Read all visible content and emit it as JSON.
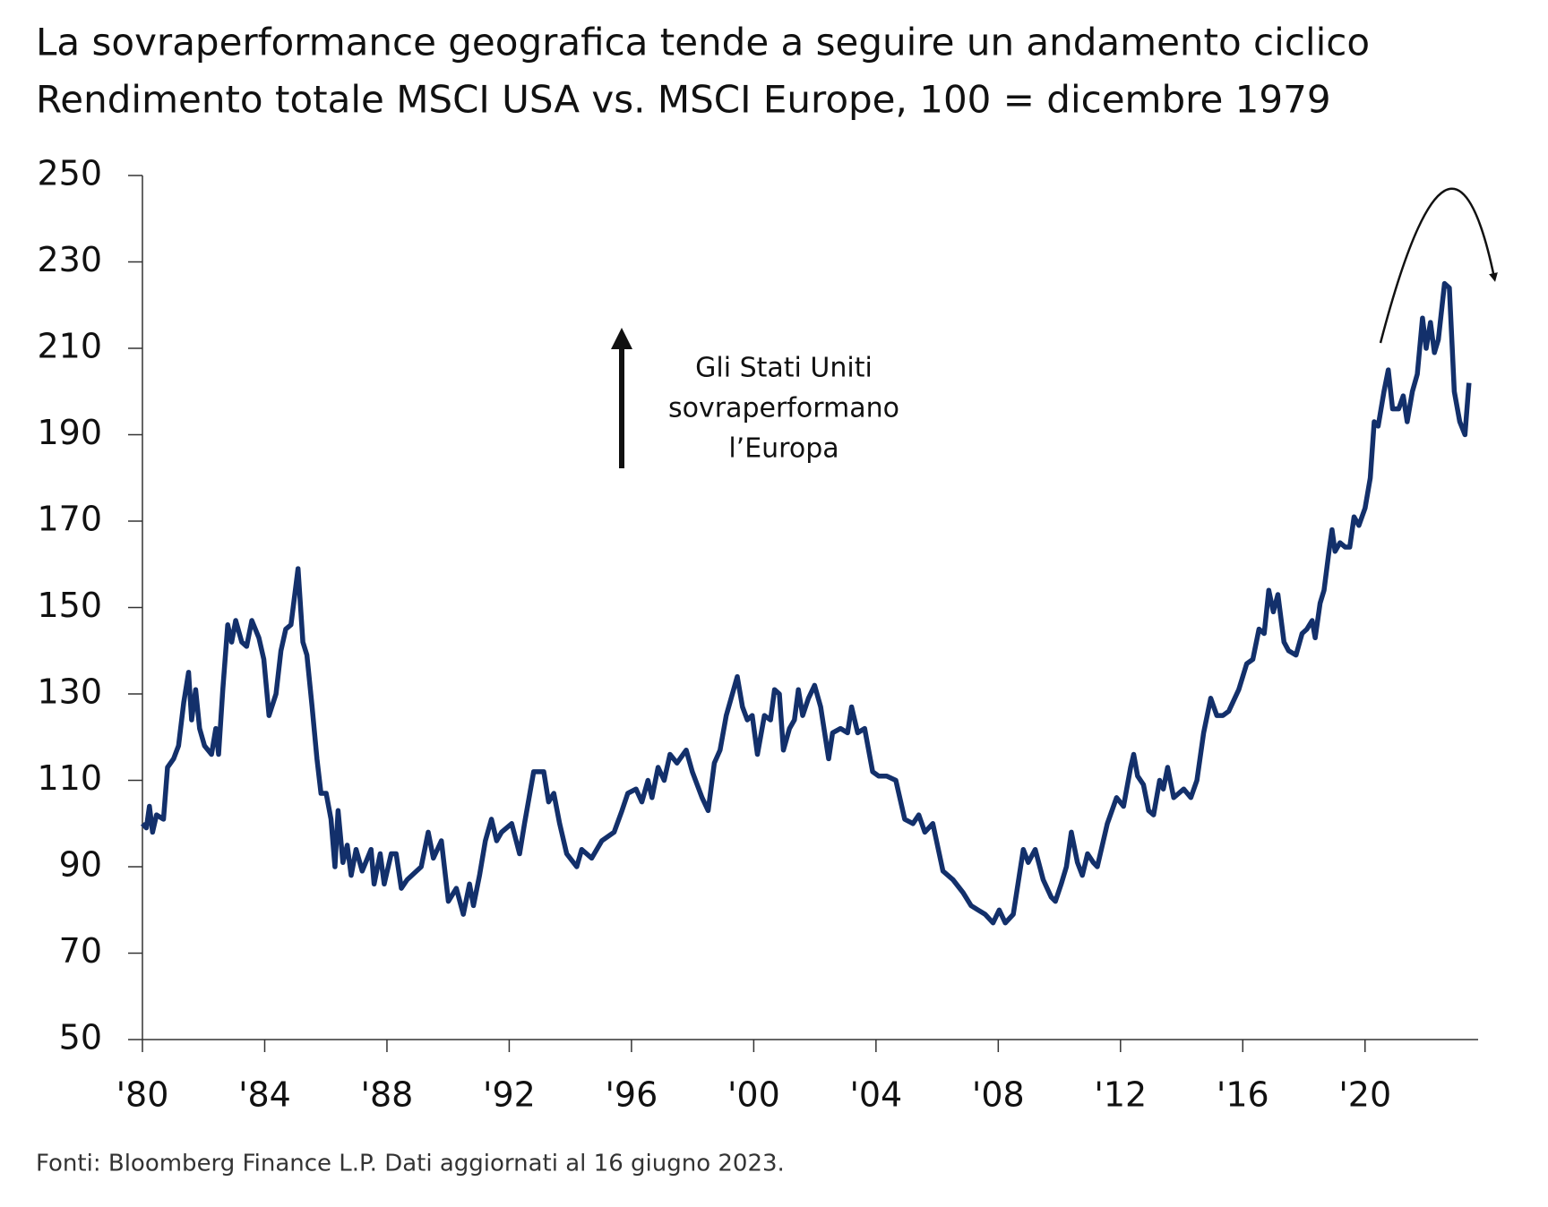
{
  "chart_data": {
    "type": "line",
    "title": "La sovraperformance geografica tende a seguire un andamento ciclico",
    "subtitle": "Rendimento totale MSCI USA vs. MSCI Europe, 100 = dicembre 1979",
    "annotation": [
      "Gli Stati Uniti",
      "sovraperformano",
      "l’Europa"
    ],
    "source": "Fonti: Bloomberg Finance L.P. Dati aggiornati al 16 giugno 2023.",
    "xlim": [
      1980,
      2023.7
    ],
    "ylim": [
      50,
      250
    ],
    "yticks": [
      50,
      70,
      90,
      110,
      130,
      150,
      170,
      190,
      210,
      230,
      250
    ],
    "xticks": [
      {
        "value": 1980,
        "label": "'80"
      },
      {
        "value": 1984,
        "label": "'84"
      },
      {
        "value": 1988,
        "label": "'88"
      },
      {
        "value": 1992,
        "label": "'92"
      },
      {
        "value": 1996,
        "label": "'96"
      },
      {
        "value": 2000,
        "label": "'00"
      },
      {
        "value": 2004,
        "label": "'04"
      },
      {
        "value": 2008,
        "label": "'08"
      },
      {
        "value": 2012,
        "label": "'12"
      },
      {
        "value": 2016,
        "label": "'16"
      },
      {
        "value": 2020,
        "label": "'20"
      }
    ],
    "grid": false,
    "x": [
      1980.0,
      1980.13,
      1980.23,
      1980.33,
      1980.46,
      1980.69,
      1980.82,
      1981.02,
      1981.18,
      1981.35,
      1981.51,
      1981.61,
      1981.74,
      1981.87,
      1982.03,
      1982.26,
      1982.4,
      1982.49,
      1982.63,
      1982.79,
      1982.92,
      1983.05,
      1983.25,
      1983.41,
      1983.58,
      1983.81,
      1983.97,
      1984.14,
      1984.37,
      1984.53,
      1984.69,
      1984.86,
      1985.09,
      1985.25,
      1985.38,
      1985.55,
      1985.71,
      1985.84,
      1986.01,
      1986.17,
      1986.3,
      1986.4,
      1986.56,
      1986.7,
      1986.83,
      1986.99,
      1987.19,
      1987.48,
      1987.58,
      1987.78,
      1987.91,
      1988.14,
      1988.3,
      1988.47,
      1988.66,
      1989.12,
      1989.35,
      1989.52,
      1989.78,
      1990.01,
      1990.27,
      1990.5,
      1990.7,
      1990.83,
      1991.03,
      1991.22,
      1991.42,
      1991.59,
      1991.75,
      1992.08,
      1992.34,
      1992.5,
      1992.8,
      1993.13,
      1993.29,
      1993.46,
      1993.65,
      1993.88,
      1994.21,
      1994.37,
      1994.7,
      1995.03,
      1995.43,
      1995.69,
      1995.88,
      1996.15,
      1996.34,
      1996.54,
      1996.67,
      1996.87,
      1997.07,
      1997.26,
      1997.49,
      1997.79,
      1997.99,
      1998.31,
      1998.51,
      1998.71,
      1998.9,
      1999.1,
      1999.46,
      1999.63,
      1999.79,
      1999.95,
      2000.12,
      2000.35,
      2000.55,
      2000.68,
      2000.84,
      2000.97,
      2001.17,
      2001.33,
      2001.46,
      2001.6,
      2001.79,
      2001.99,
      2002.19,
      2002.45,
      2002.58,
      2002.84,
      2003.07,
      2003.2,
      2003.4,
      2003.63,
      2003.89,
      2004.09,
      2004.35,
      2004.65,
      2004.94,
      2005.21,
      2005.4,
      2005.6,
      2005.86,
      2006.19,
      2006.52,
      2006.85,
      2007.11,
      2007.34,
      2007.57,
      2007.83,
      2008.03,
      2008.23,
      2008.49,
      2008.82,
      2008.98,
      2009.21,
      2009.47,
      2009.73,
      2009.87,
      2010.06,
      2010.23,
      2010.39,
      2010.59,
      2010.75,
      2010.92,
      2011.11,
      2011.24,
      2011.57,
      2011.87,
      2012.1,
      2012.33,
      2012.43,
      2012.56,
      2012.75,
      2012.92,
      2013.08,
      2013.28,
      2013.4,
      2013.54,
      2013.74,
      2014.07,
      2014.3,
      2014.5,
      2014.72,
      2014.95,
      2015.15,
      2015.35,
      2015.54,
      2015.87,
      2016.13,
      2016.33,
      2016.53,
      2016.7,
      2016.85,
      2017.0,
      2017.15,
      2017.35,
      2017.5,
      2017.74,
      2017.94,
      2018.1,
      2018.27,
      2018.37,
      2018.53,
      2018.66,
      2018.82,
      2018.92,
      2019.02,
      2019.18,
      2019.35,
      2019.5,
      2019.64,
      2019.8,
      2020.0,
      2020.17,
      2020.3,
      2020.43,
      2020.62,
      2020.76,
      2020.9,
      2021.1,
      2021.25,
      2021.38,
      2021.55,
      2021.71,
      2021.88,
      2022.0,
      2022.14,
      2022.27,
      2022.4,
      2022.6,
      2022.76,
      2022.92,
      2023.1,
      2023.27,
      2023.4
    ],
    "series": [
      {
        "name": "MSCI USA vs. MSCI Europe",
        "color": "#13306b",
        "values": [
          100,
          99,
          104,
          98,
          102,
          101,
          113,
          115,
          118,
          128,
          135,
          124,
          131,
          122,
          118,
          116,
          122,
          116,
          131,
          146,
          142,
          147,
          142,
          141,
          147,
          143,
          138,
          125,
          130,
          140,
          145,
          146,
          159,
          142,
          139,
          127,
          115,
          107,
          107,
          101,
          90,
          103,
          91,
          95,
          88,
          94,
          89,
          94,
          86,
          93,
          86,
          93,
          93,
          85,
          87,
          90,
          98,
          92,
          96,
          82,
          85,
          79,
          86,
          81,
          88,
          96,
          101,
          96,
          98,
          100,
          93,
          100,
          112,
          112,
          105,
          107,
          100,
          93,
          90,
          94,
          92,
          96,
          98,
          103,
          107,
          108,
          105,
          110,
          106,
          113,
          110,
          116,
          114,
          117,
          112,
          106,
          103,
          114,
          117,
          125,
          134,
          127,
          124,
          125,
          116,
          125,
          124,
          131,
          130,
          117,
          122,
          124,
          131,
          125,
          129,
          132,
          127,
          115,
          121,
          122,
          121,
          127,
          121,
          122,
          112,
          111,
          111,
          110,
          101,
          100,
          102,
          98,
          100,
          89,
          87,
          84,
          81,
          80,
          79,
          77,
          80,
          77,
          79,
          94,
          91,
          94,
          87,
          83,
          82,
          86,
          90,
          98,
          91,
          88,
          93,
          91,
          90,
          100,
          106,
          104,
          113,
          116,
          111,
          109,
          103,
          102,
          110,
          108,
          113,
          106,
          108,
          106,
          110,
          121,
          129,
          125,
          125,
          126,
          131,
          137,
          138,
          145,
          144,
          154,
          149,
          153,
          142,
          140,
          139,
          144,
          145,
          147,
          143,
          151,
          154,
          163,
          168,
          163,
          165,
          164,
          164,
          171,
          169,
          173,
          180,
          193,
          192,
          200,
          205,
          196,
          196,
          199,
          193,
          200,
          204,
          217,
          210,
          216,
          209,
          212,
          225,
          224,
          200,
          193,
          190,
          202
        ]
      }
    ]
  }
}
